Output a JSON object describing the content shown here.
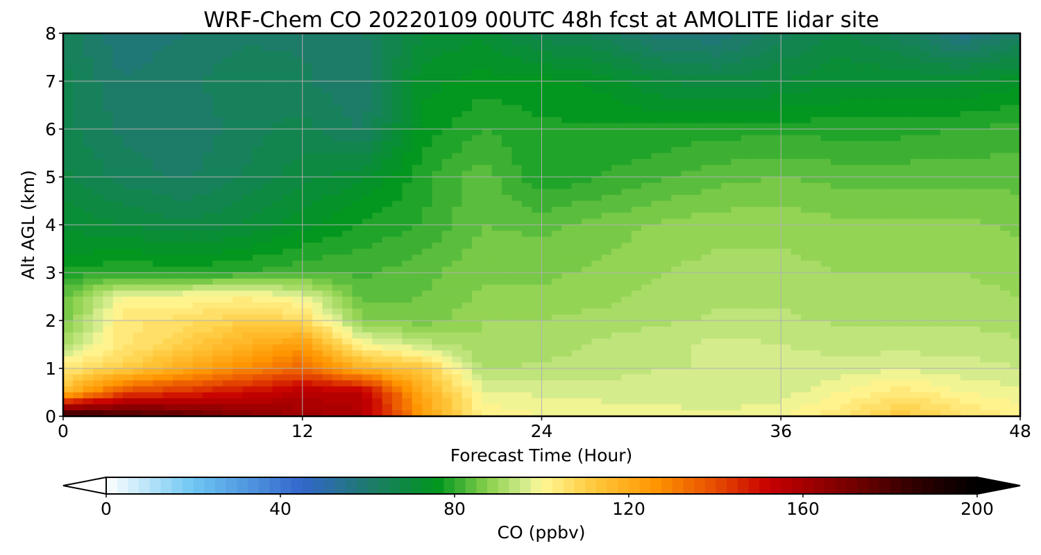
{
  "chart_data": {
    "type": "heatmap",
    "title": "WRF-Chem CO  20220109 00UTC 48h fcst at AMOLITE lidar site",
    "xlabel": "Forecast Time (Hour)",
    "ylabel": "Alt AGL (km)",
    "xlim": [
      0,
      48
    ],
    "ylim": [
      0,
      8
    ],
    "xticks": [
      0,
      12,
      24,
      36,
      48
    ],
    "yticks": [
      0,
      1,
      2,
      3,
      4,
      5,
      6,
      7,
      8
    ],
    "grid": true,
    "x": [
      0,
      3,
      6,
      9,
      12,
      15,
      18,
      21,
      24,
      27,
      30,
      33,
      36,
      39,
      42,
      45,
      48
    ],
    "y": [
      0,
      0.5,
      1,
      1.5,
      2,
      2.5,
      3,
      3.5,
      4,
      5,
      6,
      7,
      8
    ],
    "z": [
      [
        188,
        182,
        176,
        168,
        162,
        158,
        125,
        102,
        100,
        100,
        99,
        98,
        100,
        104,
        112,
        106,
        102
      ],
      [
        115,
        140,
        145,
        150,
        156,
        155,
        120,
        98,
        97,
        96,
        96,
        95,
        96,
        100,
        104,
        100,
        98
      ],
      [
        104,
        110,
        120,
        128,
        135,
        118,
        112,
        92,
        93,
        94,
        95,
        95,
        96,
        96,
        97,
        96,
        95
      ],
      [
        92,
        104,
        110,
        118,
        124,
        100,
        94,
        90,
        91,
        93,
        94,
        96,
        95,
        94,
        94,
        94,
        93
      ],
      [
        86,
        104,
        106,
        110,
        108,
        88,
        86,
        90,
        90,
        91,
        92,
        93,
        93,
        92,
        92,
        92,
        91
      ],
      [
        84,
        100,
        100,
        102,
        98,
        84,
        85,
        88,
        88,
        89,
        91,
        92,
        92,
        91,
        91,
        91,
        90
      ],
      [
        78,
        80,
        79,
        80,
        82,
        82,
        84,
        87,
        87,
        88,
        90,
        91,
        91,
        90,
        90,
        90,
        89
      ],
      [
        74,
        75,
        73,
        75,
        78,
        80,
        82,
        86,
        86,
        87,
        89,
        90,
        90,
        89,
        89,
        89,
        88
      ],
      [
        72,
        70,
        68,
        70,
        74,
        78,
        80,
        85,
        84,
        86,
        88,
        89,
        89,
        88,
        88,
        88,
        87
      ],
      [
        68,
        64,
        62,
        65,
        69,
        72,
        79,
        84,
        78,
        80,
        82,
        84,
        85,
        84,
        84,
        84,
        84
      ],
      [
        66,
        62,
        60,
        64,
        66,
        62,
        76,
        80,
        78,
        78,
        78,
        79,
        79,
        79,
        79,
        80,
        81
      ],
      [
        66,
        60,
        62,
        64,
        63,
        60,
        74,
        76,
        76,
        74,
        70,
        68,
        70,
        72,
        72,
        72,
        74
      ],
      [
        64,
        58,
        60,
        62,
        62,
        62,
        70,
        72,
        66,
        64,
        58,
        58,
        64,
        68,
        64,
        56,
        62
      ]
    ],
    "colorbar": {
      "label": "CO  (ppbv)",
      "min": 0,
      "max": 200,
      "ticks": [
        0,
        40,
        80,
        120,
        160,
        200
      ],
      "extend": "both",
      "stops": [
        {
          "v": 0,
          "c": "#ffffff"
        },
        {
          "v": 20,
          "c": "#6ec6f2"
        },
        {
          "v": 45,
          "c": "#3366cc"
        },
        {
          "v": 60,
          "c": "#1e7a6e"
        },
        {
          "v": 76,
          "c": "#00961e"
        },
        {
          "v": 88,
          "c": "#8cd24e"
        },
        {
          "v": 96,
          "c": "#d2eb8c"
        },
        {
          "v": 100,
          "c": "#fff896"
        },
        {
          "v": 112,
          "c": "#ffc83c"
        },
        {
          "v": 126,
          "c": "#ff9600"
        },
        {
          "v": 140,
          "c": "#e64b00"
        },
        {
          "v": 152,
          "c": "#c80000"
        },
        {
          "v": 170,
          "c": "#7a0000"
        },
        {
          "v": 185,
          "c": "#320000"
        },
        {
          "v": 200,
          "c": "#000000"
        }
      ]
    }
  }
}
